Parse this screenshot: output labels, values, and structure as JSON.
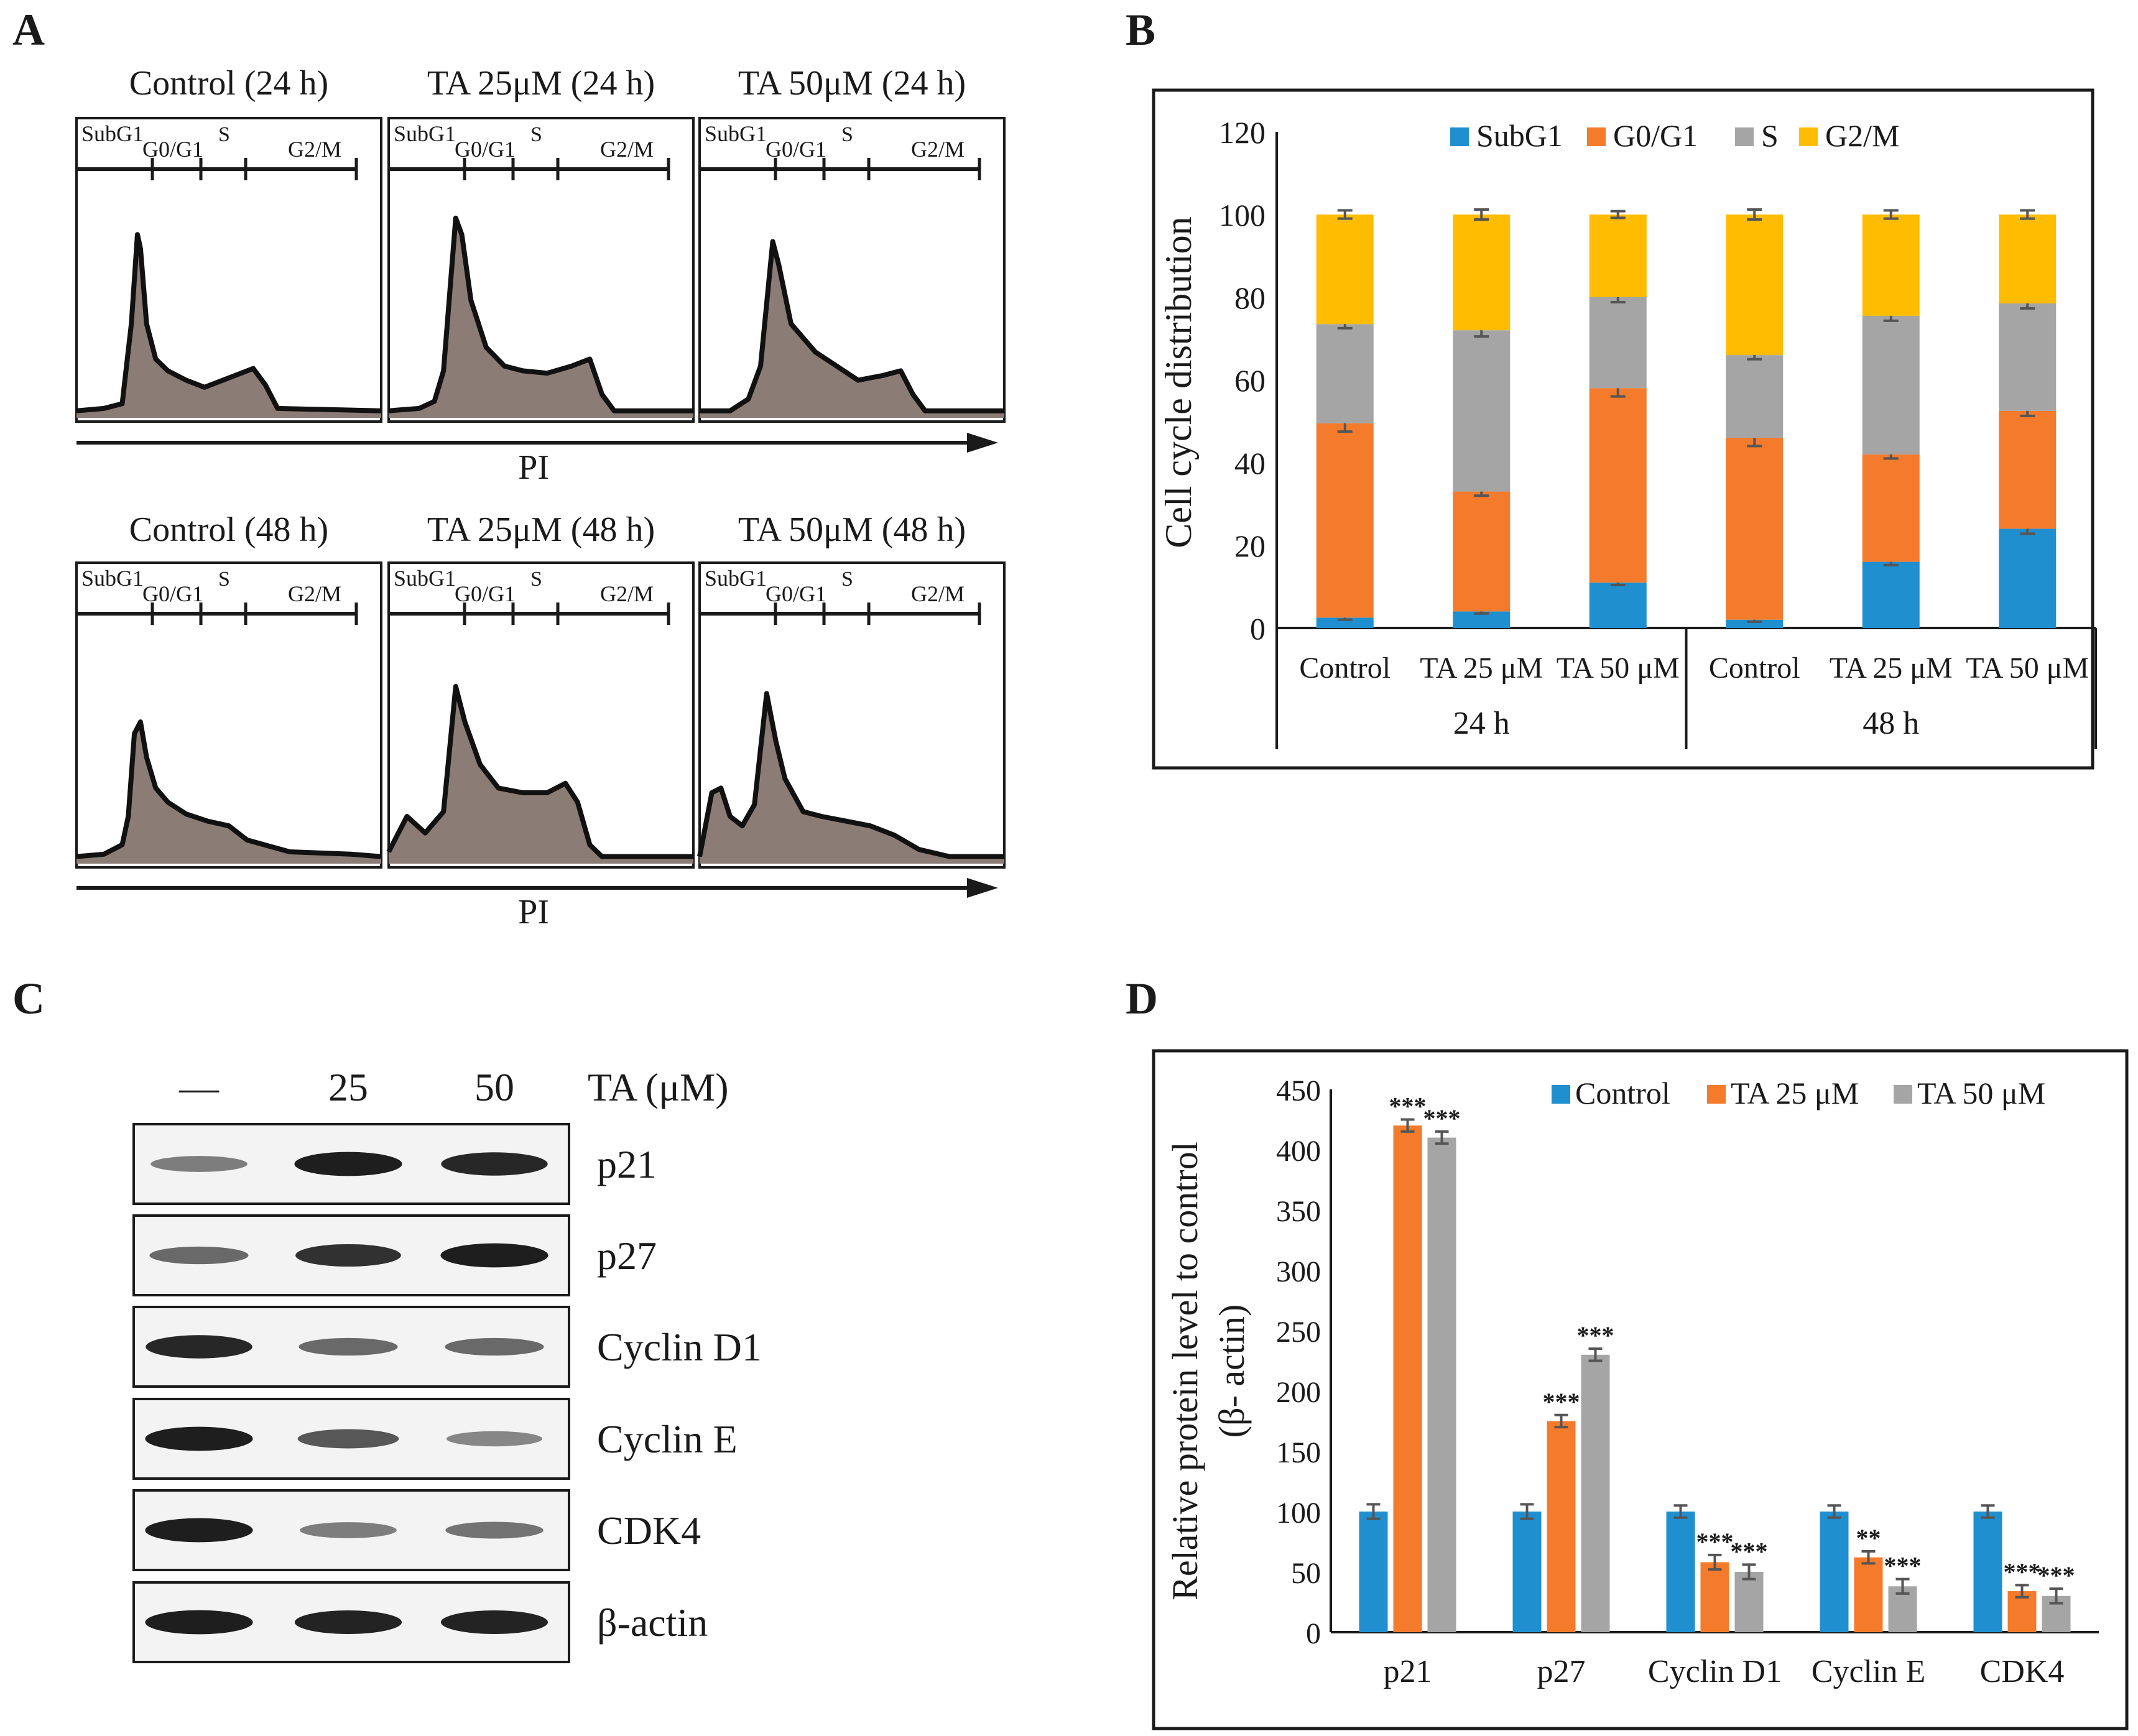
{
  "panels": {
    "A": {
      "letter": "A"
    },
    "B": {
      "letter": "B"
    },
    "C": {
      "letter": "C"
    },
    "D": {
      "letter": "D"
    }
  },
  "flow": {
    "xlabel": "PI",
    "gates": [
      "SubG1",
      "G0/G1",
      "S",
      "G2/M"
    ],
    "rows": [
      {
        "titles": [
          "Control (24 h)",
          "TA 25μM (24 h)",
          "TA 50μM (24 h)"
        ]
      },
      {
        "titles": [
          "Control (48 h)",
          "TA 25μM (48 h)",
          "TA 50μM (48 h)"
        ]
      }
    ]
  },
  "western": {
    "concentrations": [
      "—",
      "25",
      "50"
    ],
    "treatment_label": "TA (μM)",
    "proteins": [
      "p21",
      "p27",
      "Cyclin D1",
      "Cyclin E",
      "CDK4",
      "β-actin"
    ],
    "band_intensity": [
      [
        0.45,
        0.95,
        0.9
      ],
      [
        0.55,
        0.85,
        0.95
      ],
      [
        0.9,
        0.55,
        0.55
      ],
      [
        0.95,
        0.65,
        0.4
      ],
      [
        0.95,
        0.45,
        0.5
      ],
      [
        0.95,
        0.92,
        0.92
      ]
    ]
  },
  "chart_data": [
    {
      "type": "bar",
      "stacked": true,
      "ylabel": "Cell cycle distribution",
      "ylim": [
        0,
        120
      ],
      "yticks": [
        0,
        20,
        40,
        60,
        80,
        100,
        120
      ],
      "categories": [
        "Control",
        "TA 25 μM",
        "TA 50 μM",
        "Control",
        "TA 25 μM",
        "TA 50 μM"
      ],
      "groups": [
        "24 h",
        "48 h"
      ],
      "legend_position": "top",
      "series": [
        {
          "name": "SubG1",
          "color": "#1f8fd0",
          "values": [
            2.5,
            4,
            11,
            2,
            16,
            24
          ],
          "errors": [
            0.5,
            0.5,
            0.6,
            0.5,
            0.8,
            1.2
          ]
        },
        {
          "name": "G0/G1",
          "color": "#f47b2b",
          "values": [
            47,
            29,
            47,
            44,
            26,
            28.5
          ],
          "errors": [
            2,
            1,
            2,
            2,
            1,
            1.2
          ]
        },
        {
          "name": "S",
          "color": "#a5a5a5",
          "values": [
            24,
            39,
            22,
            20,
            33.5,
            26
          ],
          "errors": [
            1,
            1.5,
            1.2,
            1,
            1.2,
            1.2
          ]
        },
        {
          "name": "G2/M",
          "color": "#ffbc00",
          "values": [
            26.5,
            28,
            20,
            34,
            24.5,
            21.5
          ],
          "errors": [
            1,
            1.2,
            0.8,
            1.2,
            1,
            1
          ]
        }
      ]
    },
    {
      "type": "bar",
      "ylabel_line1": "Relative  protein  level  to control",
      "ylabel_line2": "(β- actin)",
      "ylim": [
        0,
        450
      ],
      "yticks": [
        0,
        50,
        100,
        150,
        200,
        250,
        300,
        350,
        400,
        450
      ],
      "categories": [
        "p21",
        "p27",
        "Cyclin D1",
        "Cyclin E",
        "CDK4"
      ],
      "legend_position": "top-right",
      "series": [
        {
          "name": "Control",
          "color": "#1f8fd0",
          "values": [
            100,
            100,
            100,
            100,
            100
          ],
          "errors": [
            6,
            6,
            5,
            5,
            5
          ],
          "sig": [
            "",
            "",
            "",
            "",
            ""
          ]
        },
        {
          "name": "TA 25 μM",
          "color": "#f47b2b",
          "values": [
            420,
            175,
            58,
            62,
            34
          ],
          "errors": [
            5,
            5,
            6,
            5,
            5
          ],
          "sig": [
            "***",
            "***",
            "***",
            "**",
            "***"
          ]
        },
        {
          "name": "TA 50 μM",
          "color": "#a5a5a5",
          "values": [
            410,
            230,
            50,
            38,
            30
          ],
          "errors": [
            5,
            5,
            6,
            6,
            6
          ],
          "sig": [
            "***",
            "***",
            "***",
            "***",
            "***"
          ]
        }
      ]
    }
  ]
}
